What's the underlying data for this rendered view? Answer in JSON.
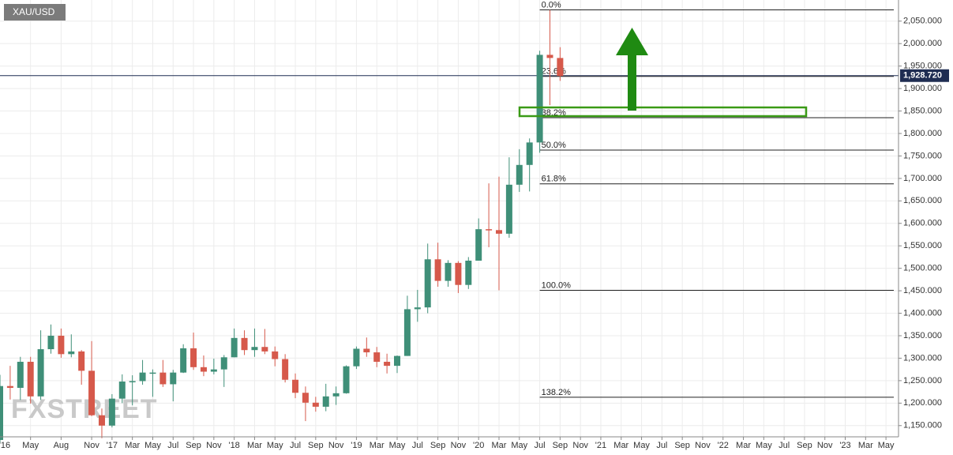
{
  "chart_data": {
    "type": "candlestick",
    "symbol": "XAU/USD",
    "watermark": "FXSTREET",
    "up_color": "#3f8f78",
    "down_color": "#d6594b",
    "grid": true,
    "x": [
      "2016-02",
      "2016-03",
      "2016-04",
      "2016-05",
      "2016-06",
      "2016-07",
      "2016-08",
      "2016-09",
      "2016-10",
      "2016-11",
      "2016-12",
      "2017-01",
      "2017-02",
      "2017-03",
      "2017-04",
      "2017-05",
      "2017-06",
      "2017-07",
      "2017-08",
      "2017-09",
      "2017-10",
      "2017-11",
      "2017-12",
      "2018-01",
      "2018-02",
      "2018-03",
      "2018-04",
      "2018-05",
      "2018-06",
      "2018-07",
      "2018-08",
      "2018-09",
      "2018-10",
      "2018-11",
      "2018-12",
      "2019-01",
      "2019-02",
      "2019-03",
      "2019-04",
      "2019-05",
      "2019-06",
      "2019-07",
      "2019-08",
      "2019-09",
      "2019-10",
      "2019-11",
      "2019-12",
      "2020-01",
      "2020-02",
      "2020-03",
      "2020-04",
      "2020-05",
      "2020-06",
      "2020-07",
      "2020-08",
      "2020-09"
    ],
    "open": [
      1118,
      1238,
      1234,
      1292,
      1215,
      1320,
      1350,
      1309,
      1315,
      1272,
      1173,
      1150,
      1210,
      1248,
      1249,
      1268,
      1268,
      1242,
      1268,
      1322,
      1280,
      1270,
      1275,
      1302,
      1345,
      1318,
      1325,
      1315,
      1298,
      1252,
      1223,
      1201,
      1192,
      1215,
      1222,
      1282,
      1321,
      1313,
      1292,
      1283,
      1305,
      1409,
      1413,
      1520,
      1472,
      1512,
      1463,
      1517,
      1587,
      1585,
      1577,
      1686,
      1730,
      1780,
      1975,
      1968
    ],
    "high": [
      1263,
      1283,
      1303,
      1303,
      1362,
      1375,
      1366,
      1353,
      1318,
      1338,
      1188,
      1220,
      1264,
      1262,
      1296,
      1275,
      1296,
      1274,
      1331,
      1357,
      1306,
      1299,
      1307,
      1366,
      1362,
      1366,
      1365,
      1326,
      1309,
      1266,
      1237,
      1214,
      1243,
      1237,
      1284,
      1326,
      1346,
      1325,
      1310,
      1306,
      1439,
      1452,
      1555,
      1557,
      1518,
      1516,
      1525,
      1611,
      1689,
      1704,
      1747,
      1765,
      1789,
      1984,
      2075,
      1992
    ],
    "low": [
      1111,
      1208,
      1207,
      1199,
      1207,
      1310,
      1301,
      1302,
      1241,
      1171,
      1122,
      1146,
      1200,
      1195,
      1241,
      1214,
      1236,
      1204,
      1267,
      1274,
      1260,
      1264,
      1236,
      1302,
      1307,
      1303,
      1309,
      1282,
      1246,
      1211,
      1160,
      1181,
      1182,
      1196,
      1221,
      1276,
      1303,
      1280,
      1266,
      1267,
      1305,
      1381,
      1400,
      1459,
      1459,
      1445,
      1454,
      1517,
      1547,
      1451,
      1568,
      1670,
      1671,
      1757,
      1863,
      1917
    ],
    "close": [
      1238,
      1234,
      1292,
      1215,
      1320,
      1350,
      1309,
      1315,
      1272,
      1173,
      1150,
      1210,
      1248,
      1249,
      1268,
      1268,
      1242,
      1268,
      1322,
      1280,
      1270,
      1275,
      1302,
      1345,
      1318,
      1325,
      1315,
      1298,
      1252,
      1223,
      1201,
      1192,
      1215,
      1222,
      1282,
      1321,
      1313,
      1292,
      1283,
      1305,
      1409,
      1413,
      1520,
      1472,
      1512,
      1463,
      1517,
      1587,
      1585,
      1577,
      1686,
      1730,
      1780,
      1975,
      1968,
      1928
    ],
    "xlim": [
      "2016-02",
      "2023-06"
    ],
    "xticks": [
      {
        "value": "2016-01",
        "label": "'16"
      },
      {
        "value": "2016-05",
        "label": "May"
      },
      {
        "value": "2016-08",
        "label": "Aug"
      },
      {
        "value": "2016-11",
        "label": "Nov"
      },
      {
        "value": "2017-01",
        "label": "'17"
      },
      {
        "value": "2017-03",
        "label": "Mar"
      },
      {
        "value": "2017-05",
        "label": "May"
      },
      {
        "value": "2017-07",
        "label": "Jul"
      },
      {
        "value": "2017-09",
        "label": "Sep"
      },
      {
        "value": "2017-11",
        "label": "Nov"
      },
      {
        "value": "2018-01",
        "label": "'18"
      },
      {
        "value": "2018-03",
        "label": "Mar"
      },
      {
        "value": "2018-05",
        "label": "May"
      },
      {
        "value": "2018-07",
        "label": "Jul"
      },
      {
        "value": "2018-09",
        "label": "Sep"
      },
      {
        "value": "2018-11",
        "label": "Nov"
      },
      {
        "value": "2019-01",
        "label": "'19"
      },
      {
        "value": "2019-03",
        "label": "Mar"
      },
      {
        "value": "2019-05",
        "label": "May"
      },
      {
        "value": "2019-07",
        "label": "Jul"
      },
      {
        "value": "2019-09",
        "label": "Sep"
      },
      {
        "value": "2019-11",
        "label": "Nov"
      },
      {
        "value": "2020-01",
        "label": "'20"
      },
      {
        "value": "2020-03",
        "label": "Mar"
      },
      {
        "value": "2020-05",
        "label": "May"
      },
      {
        "value": "2020-07",
        "label": "Jul"
      },
      {
        "value": "2020-09",
        "label": "Sep"
      },
      {
        "value": "2020-11",
        "label": "Nov"
      },
      {
        "value": "2021-01",
        "label": "'21"
      },
      {
        "value": "2021-03",
        "label": "Mar"
      },
      {
        "value": "2021-05",
        "label": "May"
      },
      {
        "value": "2021-07",
        "label": "Jul"
      },
      {
        "value": "2021-09",
        "label": "Sep"
      },
      {
        "value": "2021-11",
        "label": "Nov"
      },
      {
        "value": "2022-01",
        "label": "'22"
      },
      {
        "value": "2022-03",
        "label": "Mar"
      },
      {
        "value": "2022-05",
        "label": "May"
      },
      {
        "value": "2022-07",
        "label": "Jul"
      },
      {
        "value": "2022-09",
        "label": "Sep"
      },
      {
        "value": "2022-11",
        "label": "Nov"
      },
      {
        "value": "2023-01",
        "label": "'23"
      },
      {
        "value": "2023-03",
        "label": "Mar"
      },
      {
        "value": "2023-05",
        "label": "May"
      }
    ],
    "ylim": [
      1125,
      2097
    ],
    "yticks": [
      {
        "value": 1150,
        "label": "1,150.000"
      },
      {
        "value": 1200,
        "label": "1,200.000"
      },
      {
        "value": 1250,
        "label": "1,250.000"
      },
      {
        "value": 1300,
        "label": "1,300.000"
      },
      {
        "value": 1350,
        "label": "1,350.000"
      },
      {
        "value": 1400,
        "label": "1,400.000"
      },
      {
        "value": 1450,
        "label": "1,450.000"
      },
      {
        "value": 1500,
        "label": "1,500.000"
      },
      {
        "value": 1550,
        "label": "1,550.000"
      },
      {
        "value": 1600,
        "label": "1,600.000"
      },
      {
        "value": 1650,
        "label": "1,650.000"
      },
      {
        "value": 1700,
        "label": "1,700.000"
      },
      {
        "value": 1750,
        "label": "1,750.000"
      },
      {
        "value": 1800,
        "label": "1,800.000"
      },
      {
        "value": 1850,
        "label": "1,850.000"
      },
      {
        "value": 1900,
        "label": "1,900.000"
      },
      {
        "value": 1950,
        "label": "1,950.000"
      },
      {
        "value": 2000,
        "label": "2,000.000"
      },
      {
        "value": 2050,
        "label": "2,050.000"
      }
    ],
    "last_price": {
      "value": 1928.72,
      "label": "1,928.720"
    },
    "fib_levels": [
      {
        "label": "0.0%",
        "value": 2075
      },
      {
        "label": "23.6%",
        "value": 1927
      },
      {
        "label": "38.2%",
        "value": 1835
      },
      {
        "label": "50.0%",
        "value": 1763
      },
      {
        "label": "61.8%",
        "value": 1688
      },
      {
        "label": "100.0%",
        "value": 1451
      },
      {
        "label": "138.2%",
        "value": 1213
      }
    ]
  }
}
